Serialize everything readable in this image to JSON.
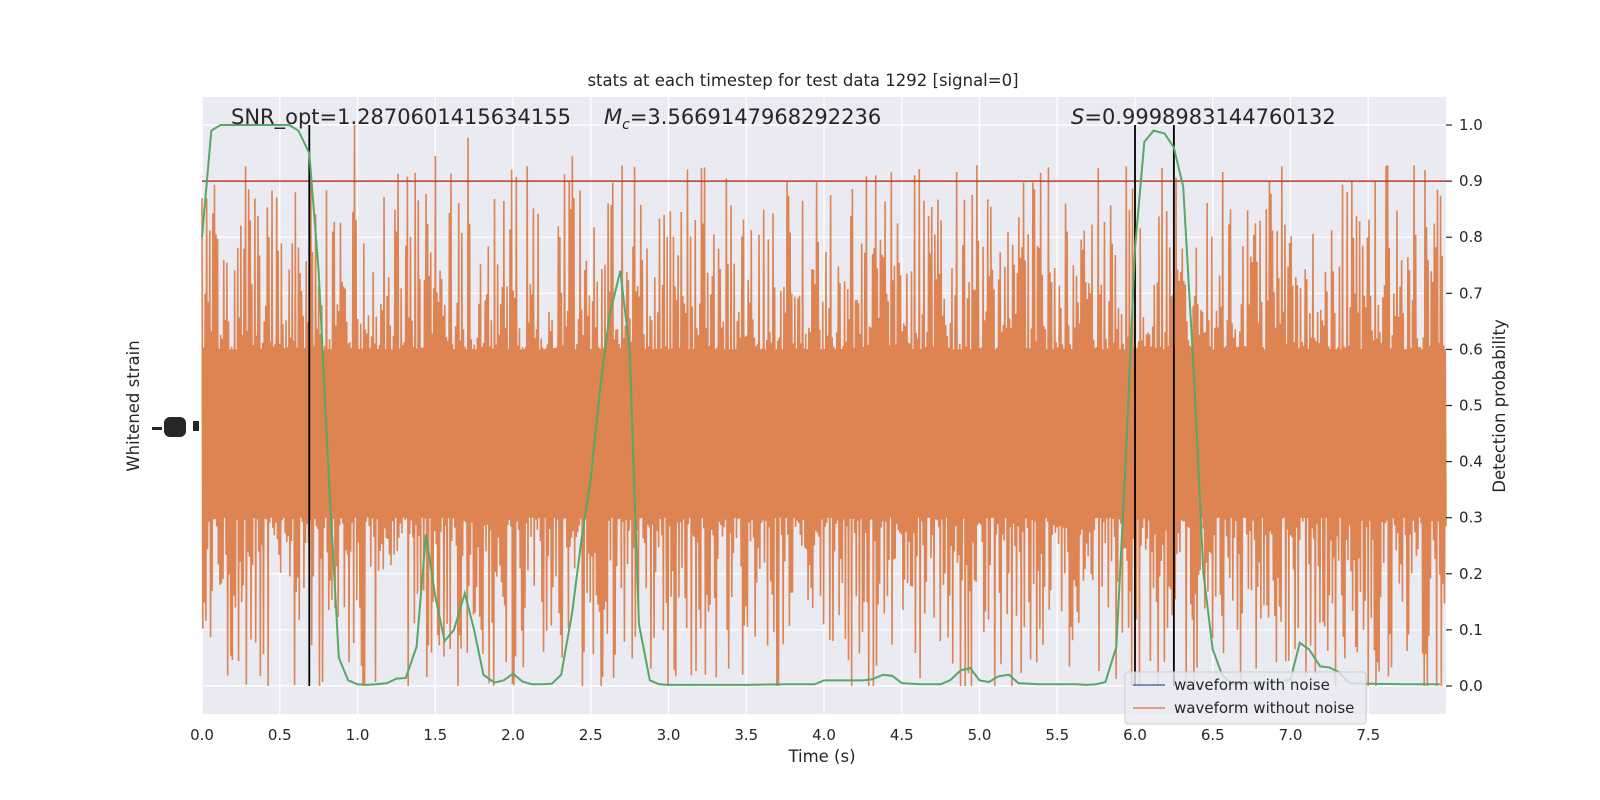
{
  "chart_data": {
    "type": "line",
    "title": "stats at each timestep for test data 1292 [signal=0]",
    "xlabel": "Time (s)",
    "ylabel_left": "Whitened strain",
    "ylabel_right": "Detection probability",
    "xlim": [
      0,
      8
    ],
    "ylim_right": [
      -0.05,
      1.05
    ],
    "x_ticks": [
      "0.0",
      "0.5",
      "1.0",
      "1.5",
      "2.0",
      "2.5",
      "3.0",
      "3.5",
      "4.0",
      "4.5",
      "5.0",
      "5.5",
      "6.0",
      "6.5",
      "7.0",
      "7.5"
    ],
    "y_ticks_right": [
      "0.0",
      "0.1",
      "0.2",
      "0.3",
      "0.4",
      "0.5",
      "0.6",
      "0.7",
      "0.8",
      "0.9",
      "1.0"
    ],
    "grid": true,
    "legend_position": "lower-right",
    "annotations": {
      "snr": "SNR_opt=1.2870601415634155",
      "mc_symbol": "M",
      "mc_sub": "c",
      "mc_value": "=3.5669147968292236",
      "s_symbol": "S",
      "s_value": "=0.9998983144760132"
    },
    "threshold": {
      "y": 0.9,
      "color": "#c0392b"
    },
    "vertical_markers": [
      0.69,
      6.0,
      6.25
    ],
    "series": [
      {
        "name": "waveform with noise",
        "color": "#4c72b0"
      },
      {
        "name": "waveform without noise",
        "color": "#dd8452",
        "envelope": {
          "center": 0.45,
          "core_half_width": 0.15,
          "max_top": 1.0,
          "min_bottom": 0.0
        }
      },
      {
        "name": "detection probability",
        "color": "#55a868",
        "x": [
          0.0,
          0.06,
          0.12,
          0.19,
          0.25,
          0.31,
          0.38,
          0.44,
          0.5,
          0.56,
          0.62,
          0.69,
          0.75,
          0.81,
          0.88,
          0.94,
          1.0,
          1.06,
          1.12,
          1.19,
          1.25,
          1.31,
          1.38,
          1.44,
          1.5,
          1.56,
          1.62,
          1.69,
          1.75,
          1.81,
          1.88,
          1.94,
          2.0,
          2.06,
          2.12,
          2.19,
          2.25,
          2.31,
          2.38,
          2.44,
          2.5,
          2.56,
          2.62,
          2.69,
          2.75,
          2.81,
          2.88,
          2.94,
          3.0,
          3.25,
          3.5,
          3.75,
          3.94,
          4.0,
          4.19,
          4.25,
          4.31,
          4.38,
          4.44,
          4.5,
          4.62,
          4.75,
          4.81,
          4.88,
          4.94,
          5.0,
          5.06,
          5.12,
          5.19,
          5.25,
          5.38,
          5.5,
          5.62,
          5.69,
          5.75,
          5.81,
          5.88,
          5.94,
          6.0,
          6.06,
          6.12,
          6.19,
          6.25,
          6.31,
          6.38,
          6.44,
          6.5,
          6.56,
          6.62,
          6.69,
          6.81,
          6.94,
          7.0,
          7.06,
          7.12,
          7.19,
          7.25,
          7.31,
          7.38,
          7.5,
          7.75,
          7.96
        ],
        "values": [
          0.8,
          0.99,
          1.0,
          1.0,
          1.0,
          1.0,
          1.0,
          1.0,
          1.0,
          1.0,
          0.99,
          0.95,
          0.74,
          0.4,
          0.05,
          0.01,
          0.003,
          0.002,
          0.003,
          0.005,
          0.013,
          0.014,
          0.07,
          0.27,
          0.16,
          0.08,
          0.1,
          0.165,
          0.1,
          0.02,
          0.006,
          0.01,
          0.022,
          0.008,
          0.003,
          0.003,
          0.004,
          0.02,
          0.13,
          0.26,
          0.37,
          0.53,
          0.66,
          0.74,
          0.6,
          0.11,
          0.01,
          0.003,
          0.002,
          0.002,
          0.002,
          0.003,
          0.003,
          0.01,
          0.01,
          0.01,
          0.012,
          0.02,
          0.018,
          0.005,
          0.003,
          0.003,
          0.01,
          0.028,
          0.032,
          0.01,
          0.007,
          0.017,
          0.02,
          0.005,
          0.003,
          0.003,
          0.003,
          0.002,
          0.003,
          0.007,
          0.07,
          0.4,
          0.78,
          0.97,
          0.99,
          0.985,
          0.96,
          0.89,
          0.55,
          0.2,
          0.065,
          0.02,
          0.004,
          0.005,
          0.006,
          0.007,
          0.012,
          0.077,
          0.065,
          0.035,
          0.033,
          0.025,
          0.005,
          0.004,
          0.003,
          0.003
        ]
      }
    ]
  }
}
